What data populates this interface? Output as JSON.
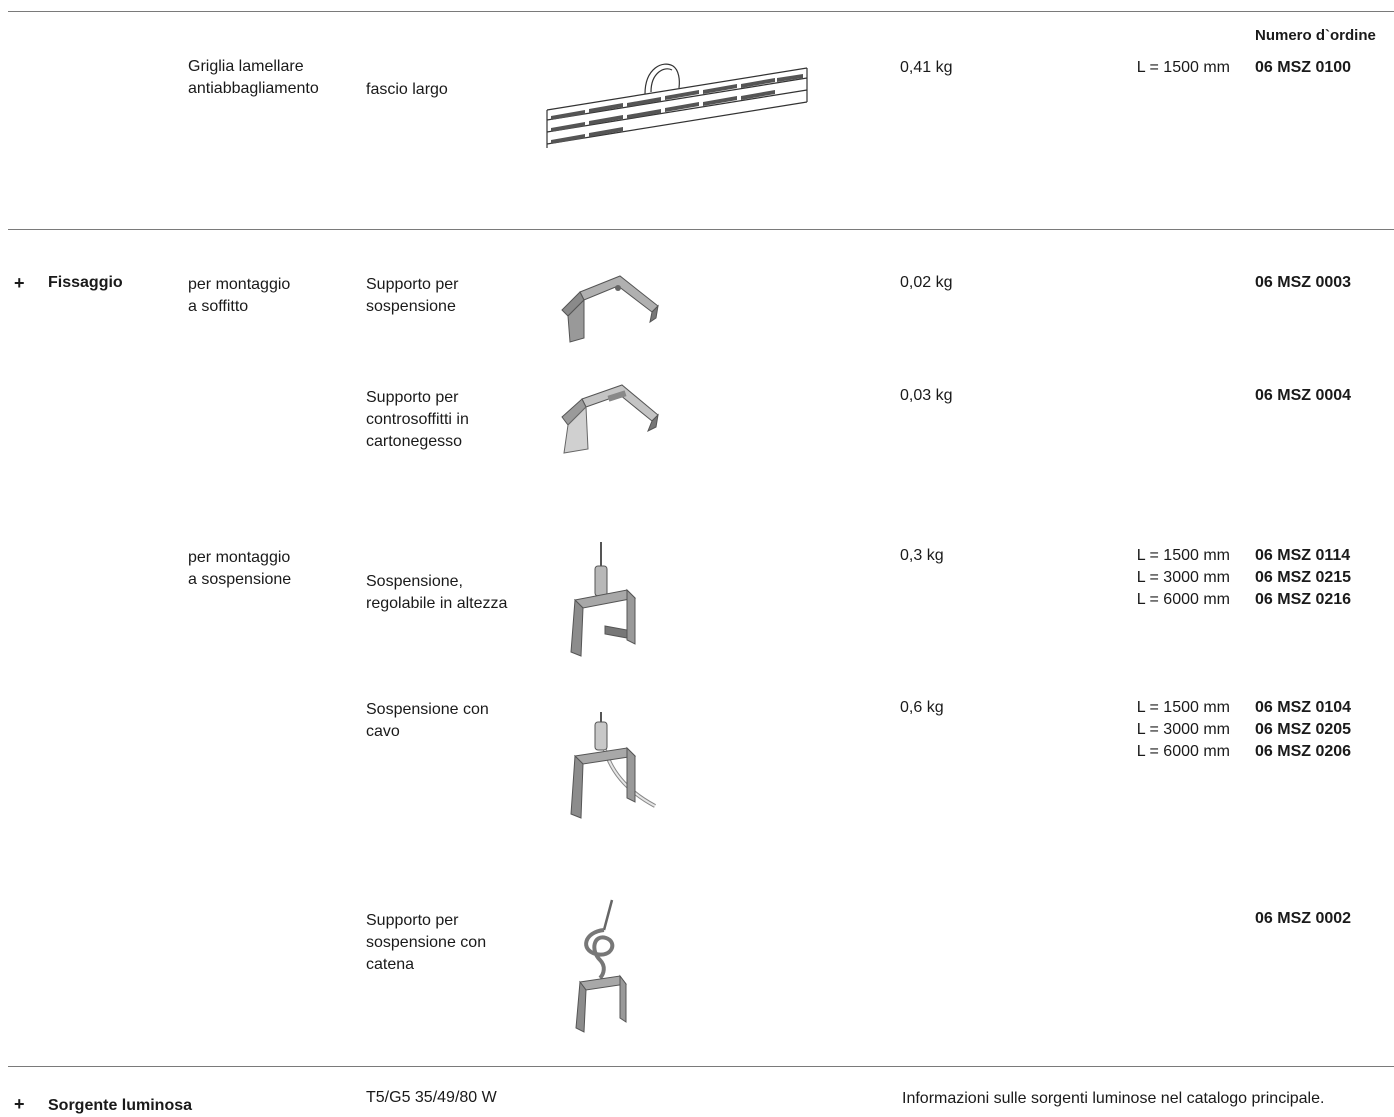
{
  "header": {
    "order_number_label": "Numero d`ordine"
  },
  "sections": {
    "griglia": {
      "type": "Griglia lamellare\nantiabbagliamento",
      "variant": "fascio largo",
      "weight": "0,41 kg",
      "lengths": "L = 1500 mm",
      "order_numbers": "06 MSZ 0100"
    },
    "fissaggio": {
      "bullet": "+",
      "title": "Fissaggio",
      "soffitto": {
        "mount": "per montaggio\na soffitto",
        "items": [
          {
            "desc": "Supporto per\nsospensione",
            "weight": "0,02 kg",
            "lengths": "",
            "order_numbers": "06 MSZ 0003"
          },
          {
            "desc": "Supporto per\ncontrosoffitti in\ncartonegesso",
            "weight": "0,03 kg",
            "lengths": "",
            "order_numbers": "06 MSZ 0004"
          }
        ]
      },
      "sospensione": {
        "mount": "per montaggio\na sospensione",
        "items": [
          {
            "desc": "Sospensione,\nregolabile in altezza",
            "weight": "0,3 kg",
            "lengths": "L = 1500 mm\nL = 3000 mm\nL = 6000 mm",
            "order_numbers": "06 MSZ 0114\n06 MSZ 0215\n06 MSZ 0216"
          },
          {
            "desc": "Sospensione con\ncavo",
            "weight": "0,6 kg",
            "lengths": "L = 1500 mm\nL = 3000 mm\nL = 6000 mm",
            "order_numbers": "06 MSZ 0104\n06 MSZ 0205\n06 MSZ 0206"
          },
          {
            "desc": "Supporto per\nsospensione con\ncatena",
            "weight": "",
            "lengths": "",
            "order_numbers": "06 MSZ 0002"
          }
        ]
      }
    },
    "sorgente": {
      "bullet": "+",
      "title": "Sorgente luminosa",
      "lamp": "T5/G5 35/49/80 W",
      "info": "Informazioni sulle sorgenti luminose nel catalogo principale."
    }
  },
  "illustrations": {
    "louvre_grid": "louvre-grid-illustration",
    "ceiling_bracket": "ceiling-bracket-illustration",
    "plasterboard_bracket": "plasterboard-bracket-illustration",
    "adjustable_suspension": "adjustable-suspension-illustration",
    "cable_suspension": "cable-suspension-illustration",
    "chain_bracket": "chain-bracket-illustration"
  }
}
